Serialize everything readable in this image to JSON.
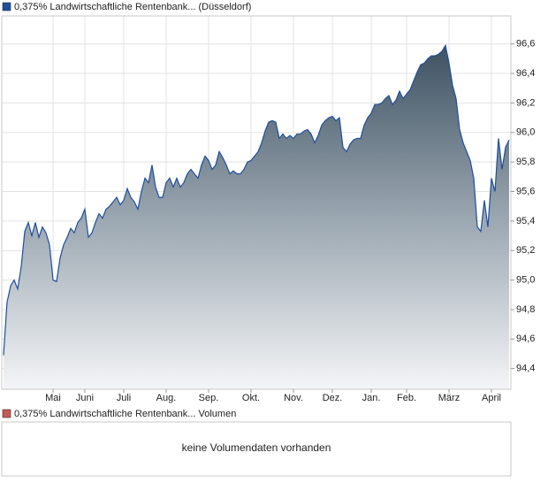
{
  "chart_data": {
    "type": "area",
    "categories": [
      null,
      null,
      null,
      null,
      null,
      null,
      null,
      null,
      null,
      null,
      null,
      null,
      null,
      null,
      "Mai",
      null,
      null,
      null,
      null,
      null,
      null,
      null,
      null,
      "Juni",
      null,
      null,
      null,
      null,
      null,
      null,
      null,
      null,
      null,
      null,
      "Juli",
      null,
      null,
      null,
      null,
      null,
      null,
      null,
      null,
      null,
      null,
      null,
      "Aug.",
      null,
      null,
      null,
      null,
      null,
      null,
      null,
      null,
      null,
      null,
      null,
      "Sep.",
      null,
      null,
      null,
      null,
      null,
      null,
      null,
      null,
      null,
      null,
      null,
      "Okt.",
      null,
      null,
      null,
      null,
      null,
      null,
      null,
      null,
      null,
      null,
      null,
      "Nov.",
      null,
      null,
      null,
      null,
      null,
      null,
      null,
      null,
      null,
      null,
      "Dez.",
      null,
      null,
      null,
      null,
      null,
      null,
      null,
      null,
      null,
      null,
      "Jan.",
      null,
      null,
      null,
      null,
      null,
      null,
      null,
      null,
      null,
      "Feb.",
      null,
      null,
      null,
      null,
      null,
      null,
      null,
      null,
      null,
      null,
      null,
      "März",
      null,
      null,
      null,
      null,
      null,
      null,
      null,
      null,
      null,
      null,
      null,
      "April",
      null,
      null,
      null,
      null,
      null
    ],
    "series": [
      {
        "name": "0,375% Landwirtschaftliche Rentenbank... (Düsseldorf)",
        "color": "#1f4e9c",
        "values": [
          94.49,
          94.85,
          94.96,
          95.0,
          94.94,
          95.09,
          95.33,
          95.39,
          95.3,
          95.39,
          95.29,
          95.36,
          95.32,
          95.24,
          95.0,
          94.99,
          95.15,
          95.24,
          95.29,
          95.35,
          95.32,
          95.39,
          95.42,
          95.48,
          95.29,
          95.32,
          95.39,
          95.45,
          95.42,
          95.48,
          95.5,
          95.53,
          95.56,
          95.51,
          95.54,
          95.62,
          95.56,
          95.53,
          95.48,
          95.6,
          95.69,
          95.66,
          95.78,
          95.63,
          95.56,
          95.56,
          95.66,
          95.69,
          95.63,
          95.69,
          95.63,
          95.66,
          95.72,
          95.75,
          95.72,
          95.69,
          95.78,
          95.84,
          95.81,
          95.75,
          95.78,
          95.87,
          95.83,
          95.78,
          95.72,
          95.74,
          95.72,
          95.72,
          95.75,
          95.8,
          95.81,
          95.84,
          95.87,
          95.93,
          96.01,
          96.07,
          96.08,
          96.07,
          95.96,
          95.99,
          95.96,
          95.98,
          95.96,
          95.99,
          95.99,
          96.01,
          96.02,
          95.99,
          95.93,
          95.98,
          96.05,
          96.08,
          96.1,
          96.11,
          96.08,
          96.1,
          95.9,
          95.87,
          95.92,
          95.95,
          95.96,
          95.96,
          96.05,
          96.1,
          96.13,
          96.19,
          96.19,
          96.2,
          96.23,
          96.25,
          96.19,
          96.22,
          96.28,
          96.23,
          96.26,
          96.29,
          96.35,
          96.41,
          96.46,
          96.47,
          96.5,
          96.52,
          96.52,
          96.53,
          96.55,
          96.59,
          96.47,
          96.32,
          96.23,
          96.02,
          95.93,
          95.87,
          95.81,
          95.69,
          95.36,
          95.33,
          95.54,
          95.36,
          95.69,
          95.6,
          95.96,
          95.75,
          95.9,
          95.95
        ]
      }
    ],
    "ylim": [
      94.26,
      96.79
    ],
    "yticks": [
      {
        "value": 94.4,
        "label": "94,4"
      },
      {
        "value": 94.6,
        "label": "94,6"
      },
      {
        "value": 94.8,
        "label": "94,8"
      },
      {
        "value": 95.0,
        "label": "95,0"
      },
      {
        "value": 95.2,
        "label": "95,2"
      },
      {
        "value": 95.4,
        "label": "95,4"
      },
      {
        "value": 95.6,
        "label": "95,6"
      },
      {
        "value": 95.8,
        "label": "95,8"
      },
      {
        "value": 96.0,
        "label": "96,0"
      },
      {
        "value": 96.2,
        "label": "96,2"
      },
      {
        "value": 96.4,
        "label": "96,4"
      },
      {
        "value": 96.6,
        "label": "96,6"
      }
    ],
    "grid": true
  },
  "volume": {
    "legend": "0,375% Landwirtschaftliche Rentenbank... Volumen",
    "color": "#c8585a",
    "message": "keine Volumendaten vorhanden"
  }
}
